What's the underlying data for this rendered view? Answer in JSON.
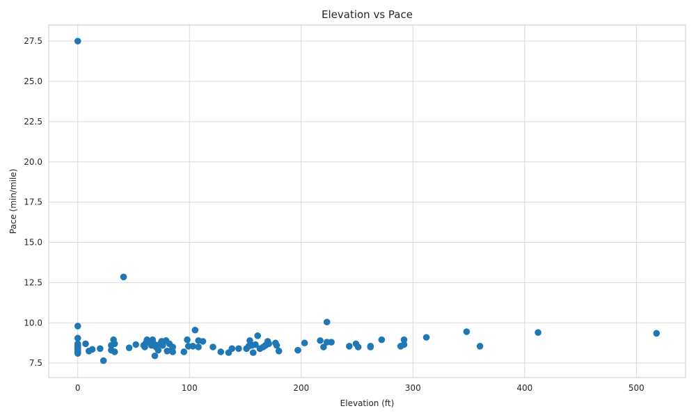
{
  "chart_data": {
    "type": "scatter",
    "title": "Elevation vs Pace",
    "xlabel": "Elevation (ft)",
    "ylabel": "Pace (min/mile)",
    "xlim": [
      -26,
      544
    ],
    "ylim": [
      6.6,
      28.5
    ],
    "xticks": [
      0,
      100,
      200,
      300,
      400,
      500
    ],
    "yticks": [
      7.5,
      10.0,
      12.5,
      15.0,
      17.5,
      20.0,
      22.5,
      25.0,
      27.5
    ],
    "xtick_labels": [
      "0",
      "100",
      "200",
      "300",
      "400",
      "500"
    ],
    "ytick_labels": [
      "7.5",
      "10.0",
      "12.5",
      "15.0",
      "17.5",
      "20.0",
      "22.5",
      "25.0",
      "27.5"
    ],
    "grid": true,
    "style": "whitegrid",
    "marker_color": "#1f77b4",
    "points": [
      [
        0,
        27.5
      ],
      [
        41,
        12.85
      ],
      [
        0,
        9.8
      ],
      [
        0,
        9.05
      ],
      [
        0,
        8.7
      ],
      [
        0,
        8.6
      ],
      [
        0,
        8.5
      ],
      [
        0,
        8.4
      ],
      [
        0,
        8.3
      ],
      [
        0,
        8.2
      ],
      [
        0,
        8.1
      ],
      [
        7,
        8.7
      ],
      [
        10,
        8.25
      ],
      [
        13,
        8.35
      ],
      [
        20,
        8.4
      ],
      [
        23,
        7.65
      ],
      [
        30,
        8.6
      ],
      [
        30,
        8.3
      ],
      [
        32,
        8.95
      ],
      [
        33,
        8.7
      ],
      [
        33,
        8.2
      ],
      [
        46,
        8.45
      ],
      [
        52,
        8.65
      ],
      [
        59,
        8.6
      ],
      [
        60,
        8.5
      ],
      [
        61,
        8.75
      ],
      [
        62,
        8.95
      ],
      [
        64,
        8.8
      ],
      [
        66,
        8.6
      ],
      [
        67,
        8.95
      ],
      [
        68,
        8.7
      ],
      [
        69,
        7.95
      ],
      [
        70,
        8.5
      ],
      [
        71,
        8.6
      ],
      [
        72,
        8.3
      ],
      [
        74,
        8.7
      ],
      [
        75,
        8.85
      ],
      [
        76,
        8.6
      ],
      [
        79,
        8.9
      ],
      [
        80,
        8.25
      ],
      [
        82,
        8.7
      ],
      [
        84,
        8.3
      ],
      [
        85,
        8.5
      ],
      [
        85,
        8.2
      ],
      [
        95,
        8.2
      ],
      [
        98,
        8.95
      ],
      [
        99,
        8.55
      ],
      [
        103,
        8.55
      ],
      [
        105,
        9.55
      ],
      [
        108,
        8.5
      ],
      [
        108,
        8.9
      ],
      [
        112,
        8.85
      ],
      [
        121,
        8.5
      ],
      [
        128,
        8.2
      ],
      [
        135,
        8.15
      ],
      [
        138,
        8.4
      ],
      [
        144,
        8.4
      ],
      [
        151,
        8.4
      ],
      [
        153,
        8.55
      ],
      [
        154,
        8.9
      ],
      [
        156,
        8.6
      ],
      [
        157,
        8.15
      ],
      [
        159,
        8.65
      ],
      [
        161,
        9.2
      ],
      [
        163,
        8.4
      ],
      [
        166,
        8.5
      ],
      [
        168,
        8.6
      ],
      [
        170,
        8.85
      ],
      [
        171,
        8.7
      ],
      [
        177,
        8.75
      ],
      [
        178,
        8.6
      ],
      [
        180,
        8.25
      ],
      [
        197,
        8.3
      ],
      [
        203,
        8.75
      ],
      [
        217,
        8.9
      ],
      [
        220,
        8.5
      ],
      [
        223,
        10.05
      ],
      [
        223,
        8.8
      ],
      [
        227,
        8.8
      ],
      [
        243,
        8.55
      ],
      [
        249,
        8.7
      ],
      [
        251,
        8.5
      ],
      [
        262,
        8.55
      ],
      [
        262,
        8.5
      ],
      [
        272,
        8.95
      ],
      [
        289,
        8.55
      ],
      [
        292,
        8.95
      ],
      [
        292,
        8.65
      ],
      [
        312,
        9.1
      ],
      [
        348,
        9.45
      ],
      [
        360,
        8.55
      ],
      [
        412,
        9.4
      ],
      [
        518,
        9.35
      ]
    ]
  }
}
